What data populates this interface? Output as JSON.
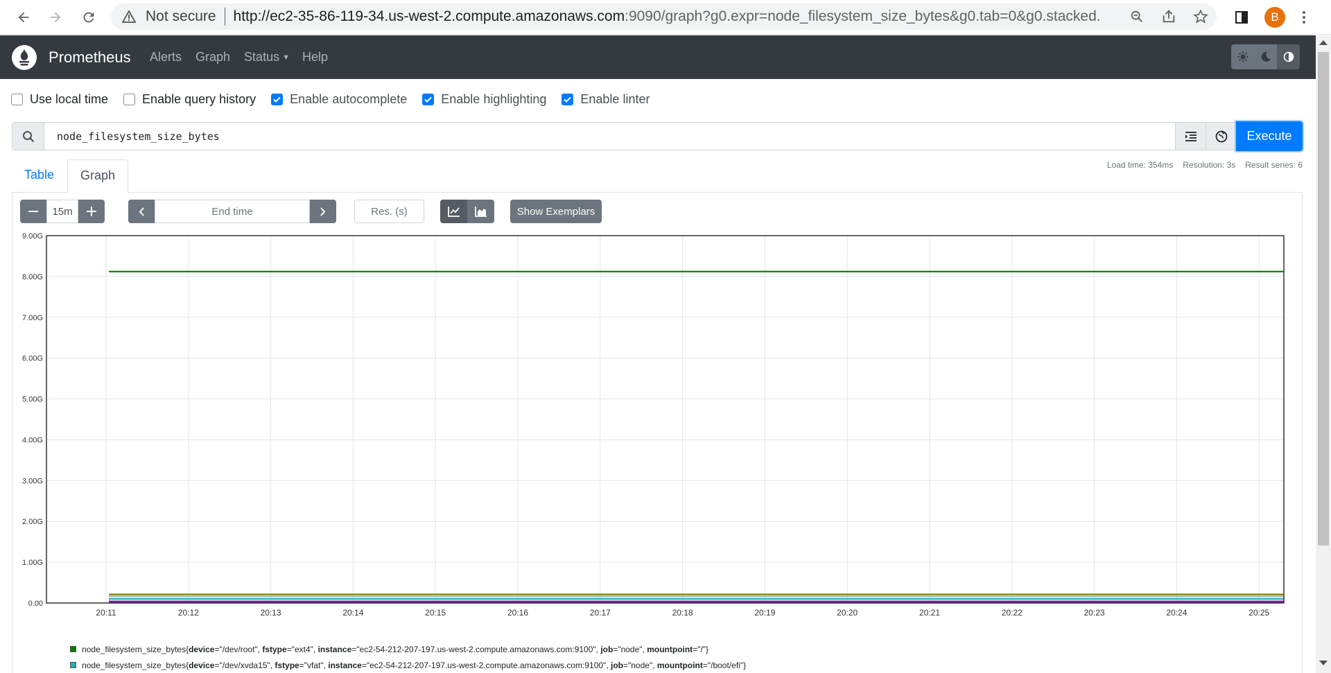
{
  "browser": {
    "security_label": "Not secure",
    "url_host": "http://ec2-35-86-119-34.us-west-2.compute.amazonaws.com",
    "url_rest": ":9090/graph?g0.expr=node_filesystem_size_bytes&g0.tab=0&g0.stacked...",
    "profile_initial": "B"
  },
  "navbar": {
    "brand": "Prometheus",
    "links": [
      "Alerts",
      "Graph",
      "Status",
      "Help"
    ]
  },
  "options": [
    {
      "label": "Use local time",
      "checked": false
    },
    {
      "label": "Enable query history",
      "checked": false
    },
    {
      "label": "Enable autocomplete",
      "checked": true
    },
    {
      "label": "Enable highlighting",
      "checked": true
    },
    {
      "label": "Enable linter",
      "checked": true
    }
  ],
  "query": {
    "expression": "node_filesystem_size_bytes",
    "execute_label": "Execute"
  },
  "stats": {
    "load_time": "Load time: 354ms",
    "resolution": "Resolution: 3s",
    "result_series": "Result series: 6"
  },
  "tabs": [
    "Table",
    "Graph"
  ],
  "controls": {
    "range": "15m",
    "end_time_placeholder": "End time",
    "res_placeholder": "Res. (s)",
    "exemplars_label": "Show Exemplars"
  },
  "chart_data": {
    "type": "line",
    "y_ticks": [
      "0.00",
      "1.00G",
      "2.00G",
      "3.00G",
      "4.00G",
      "5.00G",
      "6.00G",
      "7.00G",
      "8.00G",
      "9.00G"
    ],
    "ylim": [
      0,
      9
    ],
    "x_ticks": [
      "20:11",
      "20:12",
      "20:13",
      "20:14",
      "20:15",
      "20:16",
      "20:17",
      "20:18",
      "20:19",
      "20:20",
      "20:21",
      "20:22",
      "20:23",
      "20:24",
      "20:25"
    ],
    "series": [
      {
        "value_g": 8.12,
        "color": "#008000"
      },
      {
        "value_g": 0.21,
        "color": "#808000"
      },
      {
        "value_g": 0.16,
        "color": "#aaaaaa"
      },
      {
        "value_g": 0.1,
        "color": "#20b2aa"
      },
      {
        "value_g": 0.04,
        "color": "#9b30b0"
      },
      {
        "value_g": 0.02,
        "color": "#6a1b9a"
      }
    ],
    "grid": true
  },
  "legend": [
    {
      "metric": "node_filesystem_size_bytes{",
      "device": "/dev/root",
      "fstype": "ext4",
      "instance": "ec2-54-212-207-197.us-west-2.compute.amazonaws.com:9100",
      "job": "node",
      "mountpoint": "/",
      "color": "#008000"
    },
    {
      "metric": "node_filesystem_size_bytes{",
      "device": "/dev/xvda15",
      "fstype": "vfat",
      "instance": "ec2-54-212-207-197.us-west-2.compute.amazonaws.com:9100",
      "job": "node",
      "mountpoint": "/boot/efi",
      "color": "#20b2aa"
    }
  ]
}
